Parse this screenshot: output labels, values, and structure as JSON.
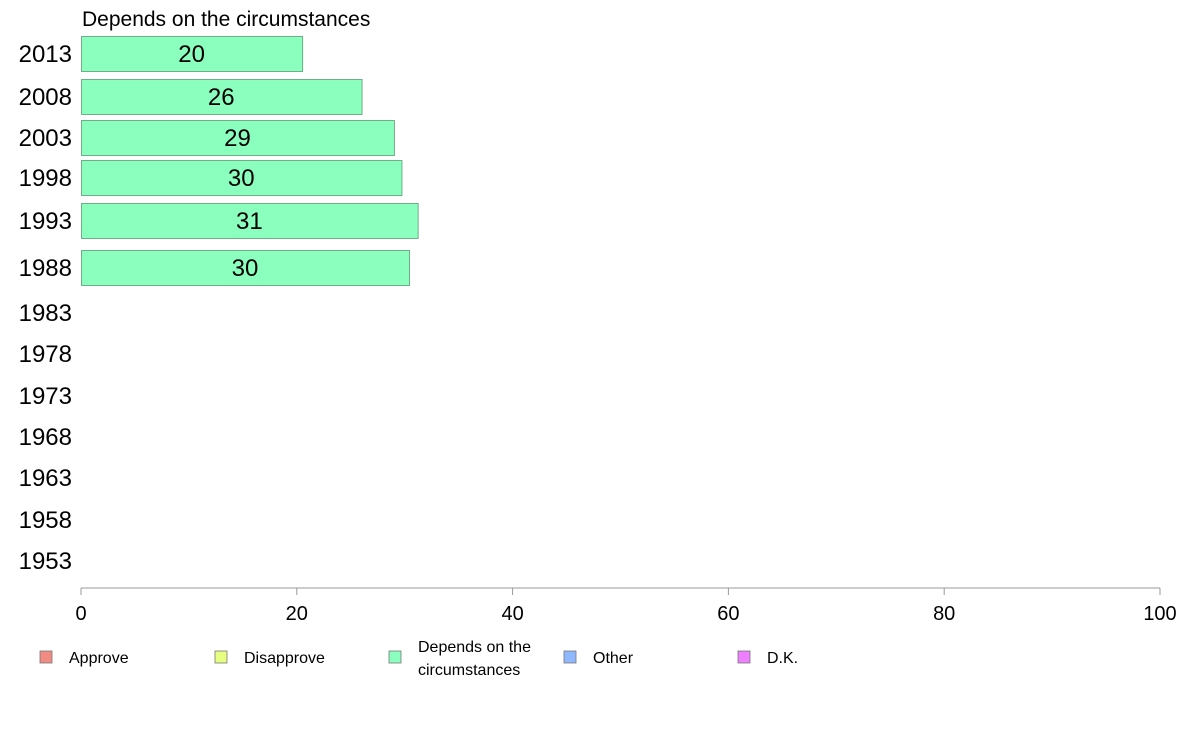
{
  "chart_data": {
    "type": "bar",
    "orientation": "horizontal",
    "title": "Depends on the circumstances",
    "categories": [
      "2013",
      "2008",
      "2003",
      "1998",
      "1993",
      "1988",
      "1983",
      "1978",
      "1973",
      "1968",
      "1963",
      "1958",
      "1953"
    ],
    "series": [
      {
        "name": "Depends on the circumstances",
        "values": [
          20.5,
          26,
          29,
          29.7,
          31.2,
          30.4,
          null,
          null,
          null,
          null,
          null,
          null,
          null
        ],
        "labels": [
          "20",
          "26",
          "29",
          "30",
          "31",
          "30",
          "",
          "",
          "",
          "",
          "",
          "",
          ""
        ]
      }
    ],
    "xlim": [
      0,
      100
    ],
    "xticks": [
      0,
      20,
      40,
      60,
      80,
      100
    ],
    "grid": false,
    "legend": {
      "placement": "bottom",
      "entries": [
        {
          "label": "Approve",
          "color": "#f28b82"
        },
        {
          "label": "Disapprove",
          "color": "#e6ff80"
        },
        {
          "label": "Depends on the circumstances",
          "color": "#8bffbd"
        },
        {
          "label": "Other",
          "color": "#8fb8ff"
        },
        {
          "label": "D.K.",
          "color": "#ee80ff"
        }
      ]
    },
    "bar_color": "#8bffbd",
    "bar_stroke": "#5a9a72",
    "axis_color": "#999999"
  }
}
